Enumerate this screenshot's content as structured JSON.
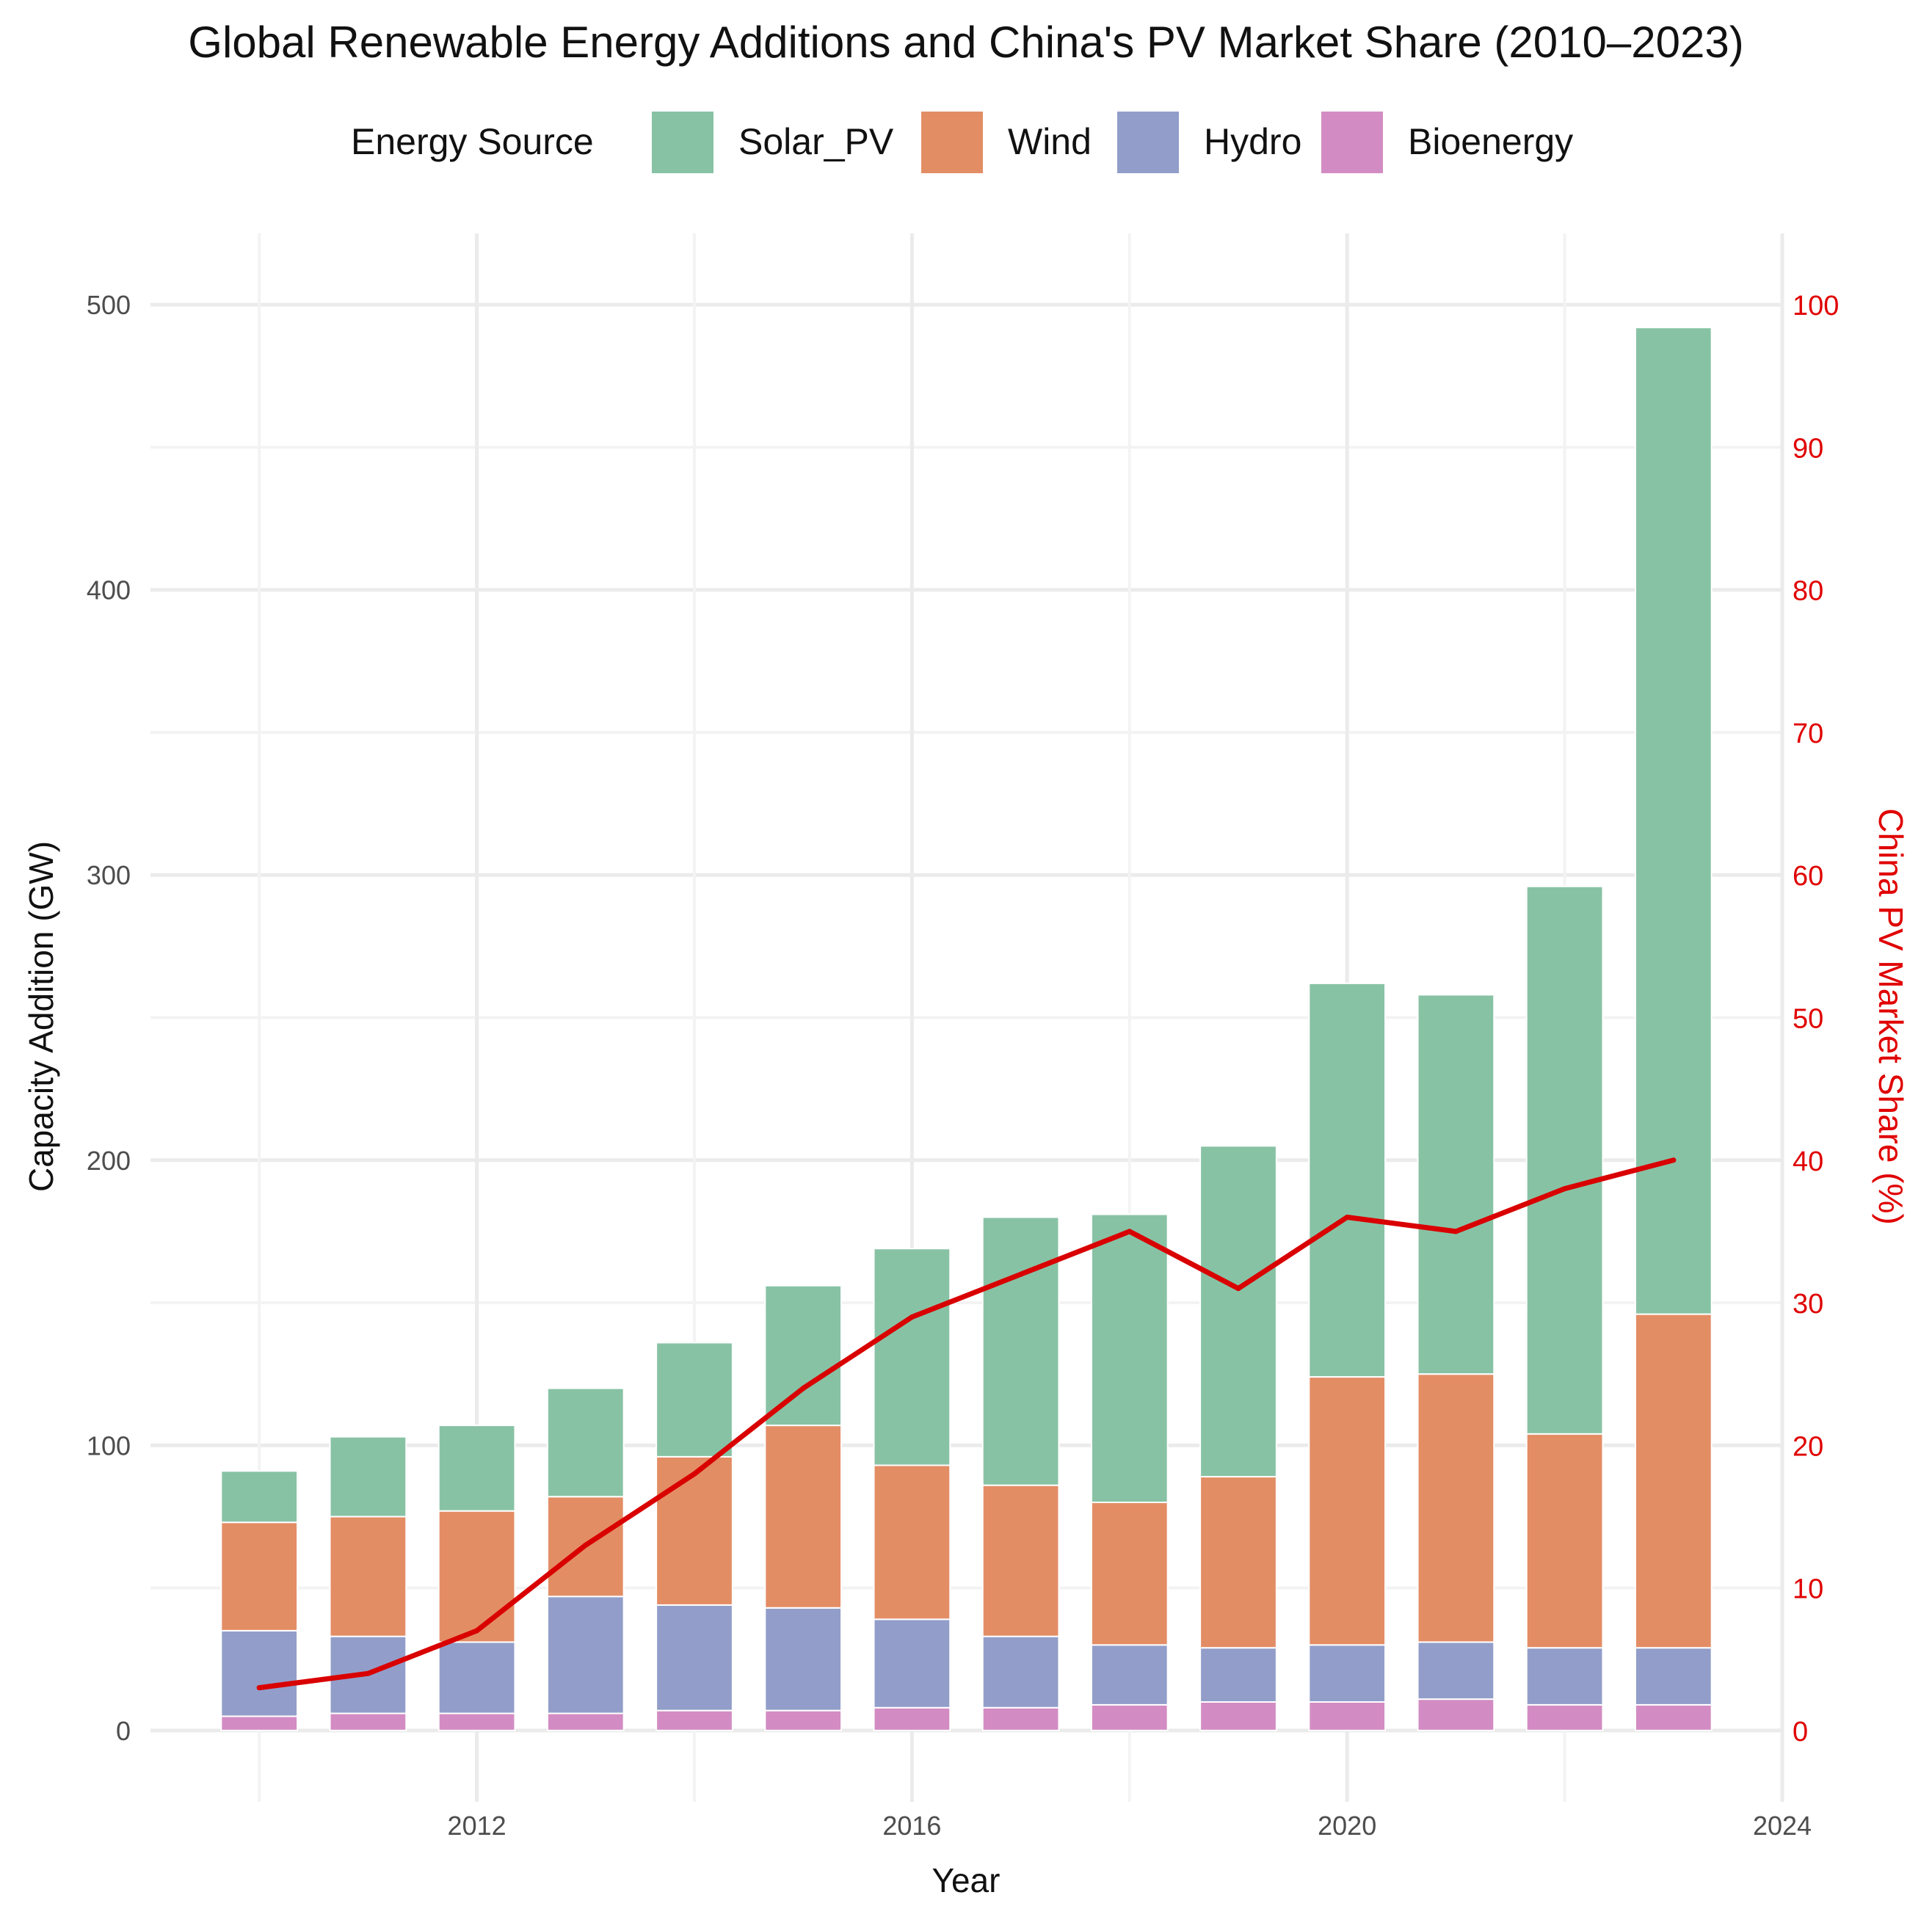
{
  "chart_data": {
    "type": "bar",
    "stacked": true,
    "title": "Global Renewable Energy Additions and China's PV Market Share (2010–2023)",
    "xlabel": "Year",
    "ylabel": "Capacity Addition (GW)",
    "y2label": "China PV Market Share (%)",
    "legend_title": "Energy Source",
    "legend_position": "top",
    "grid": true,
    "x": [
      2010,
      2011,
      2012,
      2013,
      2014,
      2015,
      2016,
      2017,
      2018,
      2019,
      2020,
      2021,
      2022,
      2023
    ],
    "xlim": [
      2009.0,
      2024.0
    ],
    "x_ticks": [
      2012,
      2016,
      2020,
      2024
    ],
    "ylim": [
      -25,
      525
    ],
    "y_ticks": [
      0,
      100,
      200,
      300,
      400,
      500
    ],
    "y2lim": [
      -5,
      105
    ],
    "y2_ticks": [
      0,
      10,
      20,
      30,
      40,
      50,
      60,
      70,
      80,
      90,
      100
    ],
    "series": [
      {
        "name": "Bioenergy",
        "color": "#d38cc3",
        "values": [
          5,
          6,
          6,
          6,
          7,
          7,
          8,
          8,
          9,
          10,
          10,
          11,
          9,
          9
        ]
      },
      {
        "name": "Hydro",
        "color": "#929ec9",
        "values": [
          30,
          27,
          25,
          41,
          37,
          36,
          31,
          25,
          21,
          19,
          20,
          20,
          20,
          20
        ]
      },
      {
        "name": "Wind",
        "color": "#e38d65",
        "values": [
          38,
          42,
          46,
          35,
          52,
          64,
          54,
          53,
          50,
          60,
          94,
          94,
          75,
          117
        ]
      },
      {
        "name": "Solar_PV",
        "color": "#88c2a5",
        "values": [
          18,
          28,
          30,
          38,
          40,
          49,
          76,
          94,
          101,
          116,
          138,
          133,
          192,
          346
        ]
      }
    ],
    "legend_order": [
      "Solar_PV",
      "Wind",
      "Hydro",
      "Bioenergy"
    ],
    "line": {
      "name": "China PV Market Share (%)",
      "color": "#d90000",
      "axis": "right",
      "values": [
        3,
        4,
        7,
        13,
        18,
        24,
        29,
        32,
        35,
        31,
        36,
        35,
        38,
        40
      ]
    }
  }
}
